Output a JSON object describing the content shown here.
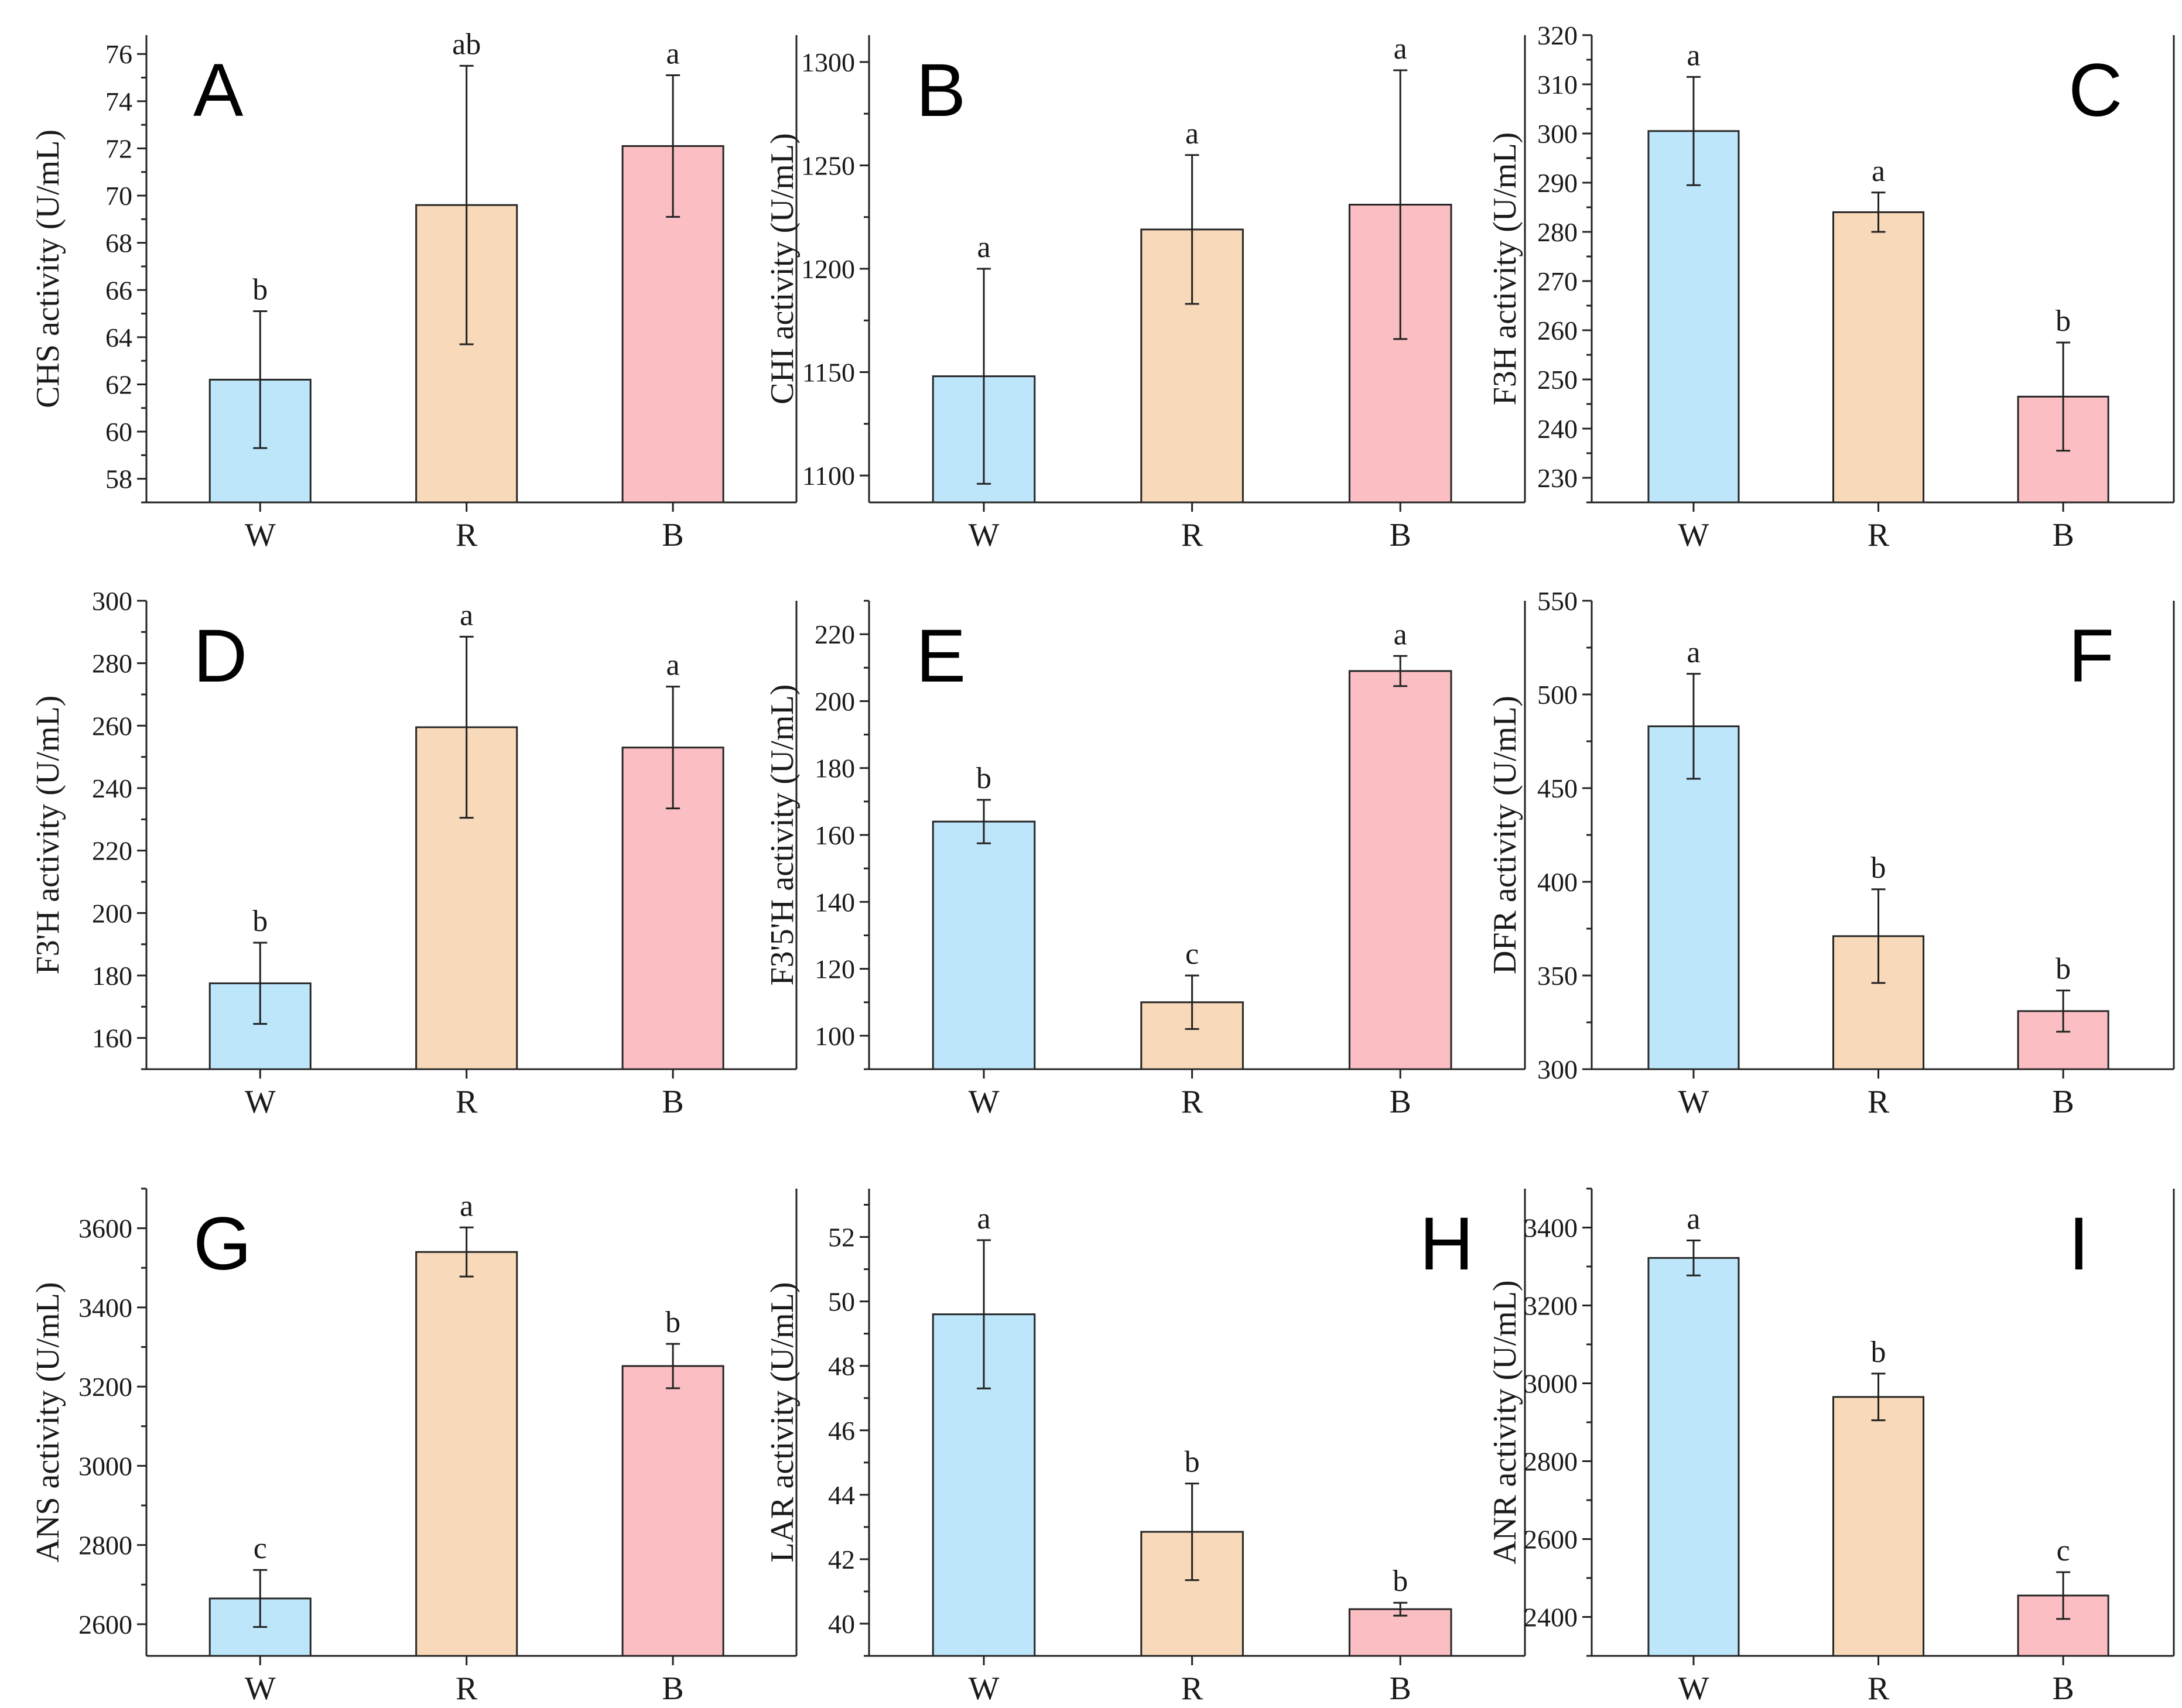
{
  "colors": {
    "W": "#bde6fb",
    "R": "#f8d9b9",
    "B": "#fbbfc3",
    "stroke": "#262626"
  },
  "chart_data": [
    {
      "type": "bar",
      "panel": "A",
      "ylabel": "CHS activity (U/mL)",
      "categories": [
        "W",
        "R",
        "B"
      ],
      "values": [
        62.2,
        69.6,
        72.1
      ],
      "errors": [
        2.9,
        5.9,
        3.0
      ],
      "significance": [
        "b",
        "ab",
        "a"
      ],
      "ylim": [
        57,
        76.8
      ],
      "yticks": [
        58,
        60,
        62,
        64,
        66,
        68,
        70,
        72,
        74,
        76
      ],
      "panel_label_pos": "top-left"
    },
    {
      "type": "bar",
      "panel": "B",
      "ylabel": "CHI activity (U/mL)",
      "categories": [
        "W",
        "R",
        "B"
      ],
      "values": [
        1148,
        1219,
        1231
      ],
      "errors": [
        52,
        36,
        65
      ],
      "significance": [
        "a",
        "a",
        "a"
      ],
      "ylim": [
        1087,
        1313
      ],
      "yticks": [
        1100,
        1150,
        1200,
        1250,
        1300
      ],
      "panel_label_pos": "top-left"
    },
    {
      "type": "bar",
      "panel": "C",
      "ylabel": "F3H activity (U/mL)",
      "categories": [
        "W",
        "R",
        "B"
      ],
      "values": [
        300.5,
        284,
        246.5
      ],
      "errors": [
        11,
        4,
        11
      ],
      "significance": [
        "a",
        "a",
        "b"
      ],
      "ylim": [
        225,
        320
      ],
      "yticks": [
        230,
        240,
        250,
        260,
        270,
        280,
        290,
        300,
        310,
        320
      ],
      "panel_label_pos": "top-right"
    },
    {
      "type": "bar",
      "panel": "D",
      "ylabel": "F3'H activity (U/mL)",
      "categories": [
        "W",
        "R",
        "B"
      ],
      "values": [
        177.5,
        259.5,
        253
      ],
      "errors": [
        13,
        29,
        19.5
      ],
      "significance": [
        "b",
        "a",
        "a"
      ],
      "ylim": [
        150,
        300
      ],
      "yticks": [
        160,
        180,
        200,
        220,
        240,
        260,
        280,
        300
      ],
      "panel_label_pos": "top-left"
    },
    {
      "type": "bar",
      "panel": "E",
      "ylabel": "F3'5'H activity (U/mL)",
      "categories": [
        "W",
        "R",
        "B"
      ],
      "values": [
        164,
        110,
        209
      ],
      "errors": [
        6.5,
        8,
        4.5
      ],
      "significance": [
        "b",
        "c",
        "a"
      ],
      "ylim": [
        90,
        230
      ],
      "yticks": [
        100,
        120,
        140,
        160,
        180,
        200,
        220
      ],
      "panel_label_pos": "top-left"
    },
    {
      "type": "bar",
      "panel": "F",
      "ylabel": "DFR activity (U/mL)",
      "categories": [
        "W",
        "R",
        "B"
      ],
      "values": [
        483,
        371,
        331
      ],
      "errors": [
        28,
        25,
        11
      ],
      "significance": [
        "a",
        "b",
        "b"
      ],
      "ylim": [
        300,
        550
      ],
      "yticks": [
        300,
        350,
        400,
        450,
        500,
        550
      ],
      "panel_label_pos": "top-right"
    },
    {
      "type": "bar",
      "panel": "G",
      "ylabel": "ANS activity (U/mL)",
      "categories": [
        "W",
        "R",
        "B"
      ],
      "values": [
        2665,
        3540,
        3252
      ],
      "errors": [
        72,
        62,
        56
      ],
      "significance": [
        "c",
        "a",
        "b"
      ],
      "ylim": [
        2520,
        3700
      ],
      "yticks": [
        2600,
        2800,
        3000,
        3200,
        3400,
        3600
      ],
      "panel_label_pos": "top-left"
    },
    {
      "type": "bar",
      "panel": "H",
      "ylabel": "LAR activity (U/mL)",
      "categories": [
        "W",
        "R",
        "B"
      ],
      "values": [
        49.6,
        42.85,
        40.45
      ],
      "errors": [
        2.3,
        1.5,
        0.2
      ],
      "significance": [
        "a",
        "b",
        "b"
      ],
      "ylim": [
        39,
        53.5
      ],
      "yticks": [
        40,
        42,
        44,
        46,
        48,
        50,
        52
      ],
      "panel_label_pos": "top-right"
    },
    {
      "type": "bar",
      "panel": "I",
      "ylabel": "ANR activity (U/mL)",
      "categories": [
        "W",
        "R",
        "B"
      ],
      "values": [
        3322,
        2965,
        2455
      ],
      "errors": [
        45,
        60,
        60
      ],
      "significance": [
        "a",
        "b",
        "c"
      ],
      "ylim": [
        2300,
        3500
      ],
      "yticks": [
        2400,
        2600,
        2800,
        3000,
        3200,
        3400
      ],
      "panel_label_pos": "top-right"
    }
  ]
}
